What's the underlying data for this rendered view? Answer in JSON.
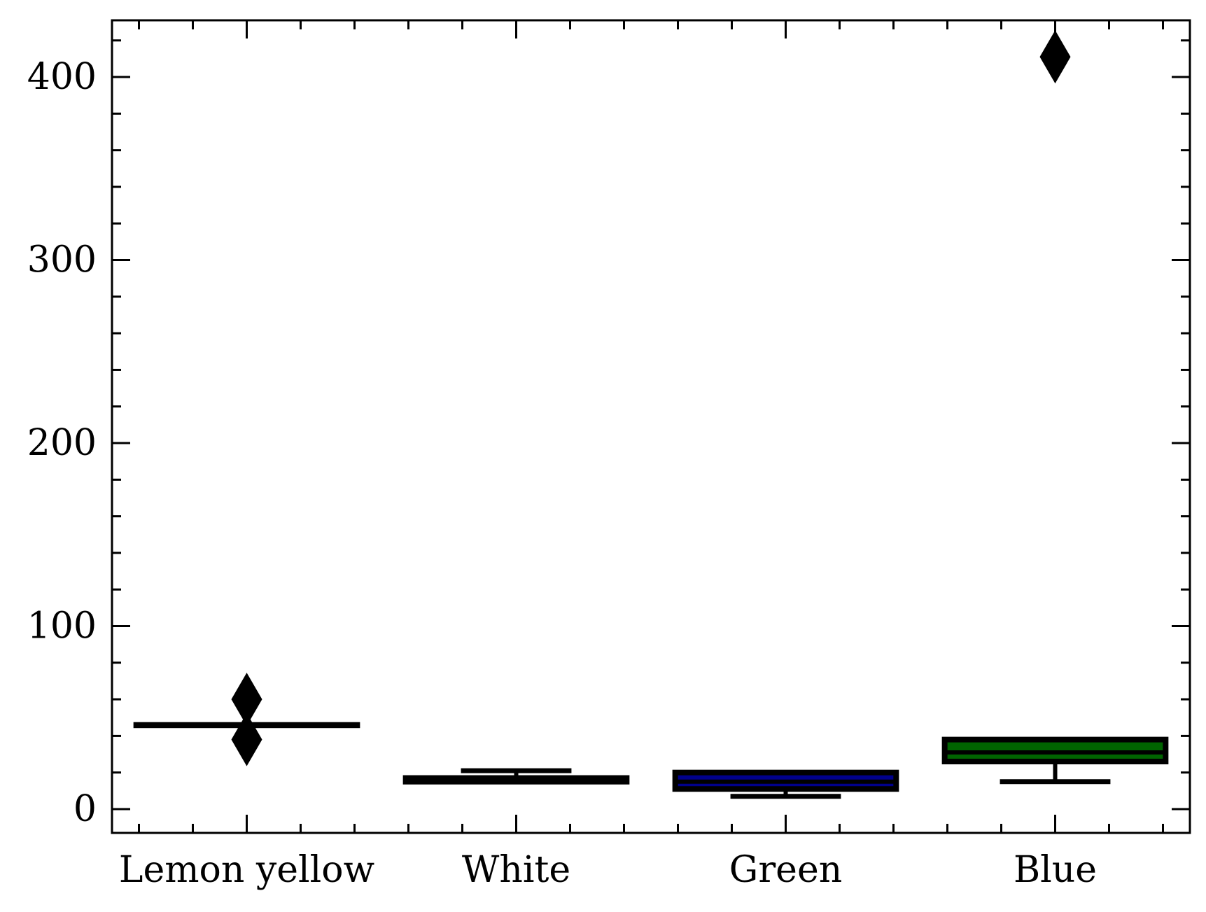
{
  "chart_data": {
    "type": "box",
    "title": "",
    "xlabel": "",
    "ylabel": "",
    "categories": [
      "Lemon yellow",
      "White",
      "Green",
      "Blue"
    ],
    "ylim": [
      -13,
      431
    ],
    "yticks": [
      0,
      100,
      200,
      300,
      400
    ],
    "ytick_labels": [
      "0",
      "100",
      "200",
      "300",
      "400"
    ],
    "grid": false,
    "boxes": [
      {
        "category": "Lemon yellow",
        "whisker_low": 46,
        "q1": 46,
        "median": 46,
        "q3": 46,
        "whisker_high": 46,
        "outliers": [
          60,
          38
        ],
        "color": "#ffff00"
      },
      {
        "category": "White",
        "whisker_low": 15,
        "q1": 15,
        "median": 15,
        "q3": 17,
        "whisker_high": 21,
        "outliers": [],
        "color": "#ffffff"
      },
      {
        "category": "Green",
        "whisker_low": 7,
        "q1": 11,
        "median": 15,
        "q3": 20,
        "whisker_high": 20,
        "outliers": [],
        "color": "#00008b"
      },
      {
        "category": "Blue",
        "whisker_low": 15,
        "q1": 26,
        "median": 31,
        "q3": 38,
        "whisker_high": 38,
        "outliers": [
          411
        ],
        "color": "#006400"
      }
    ]
  }
}
